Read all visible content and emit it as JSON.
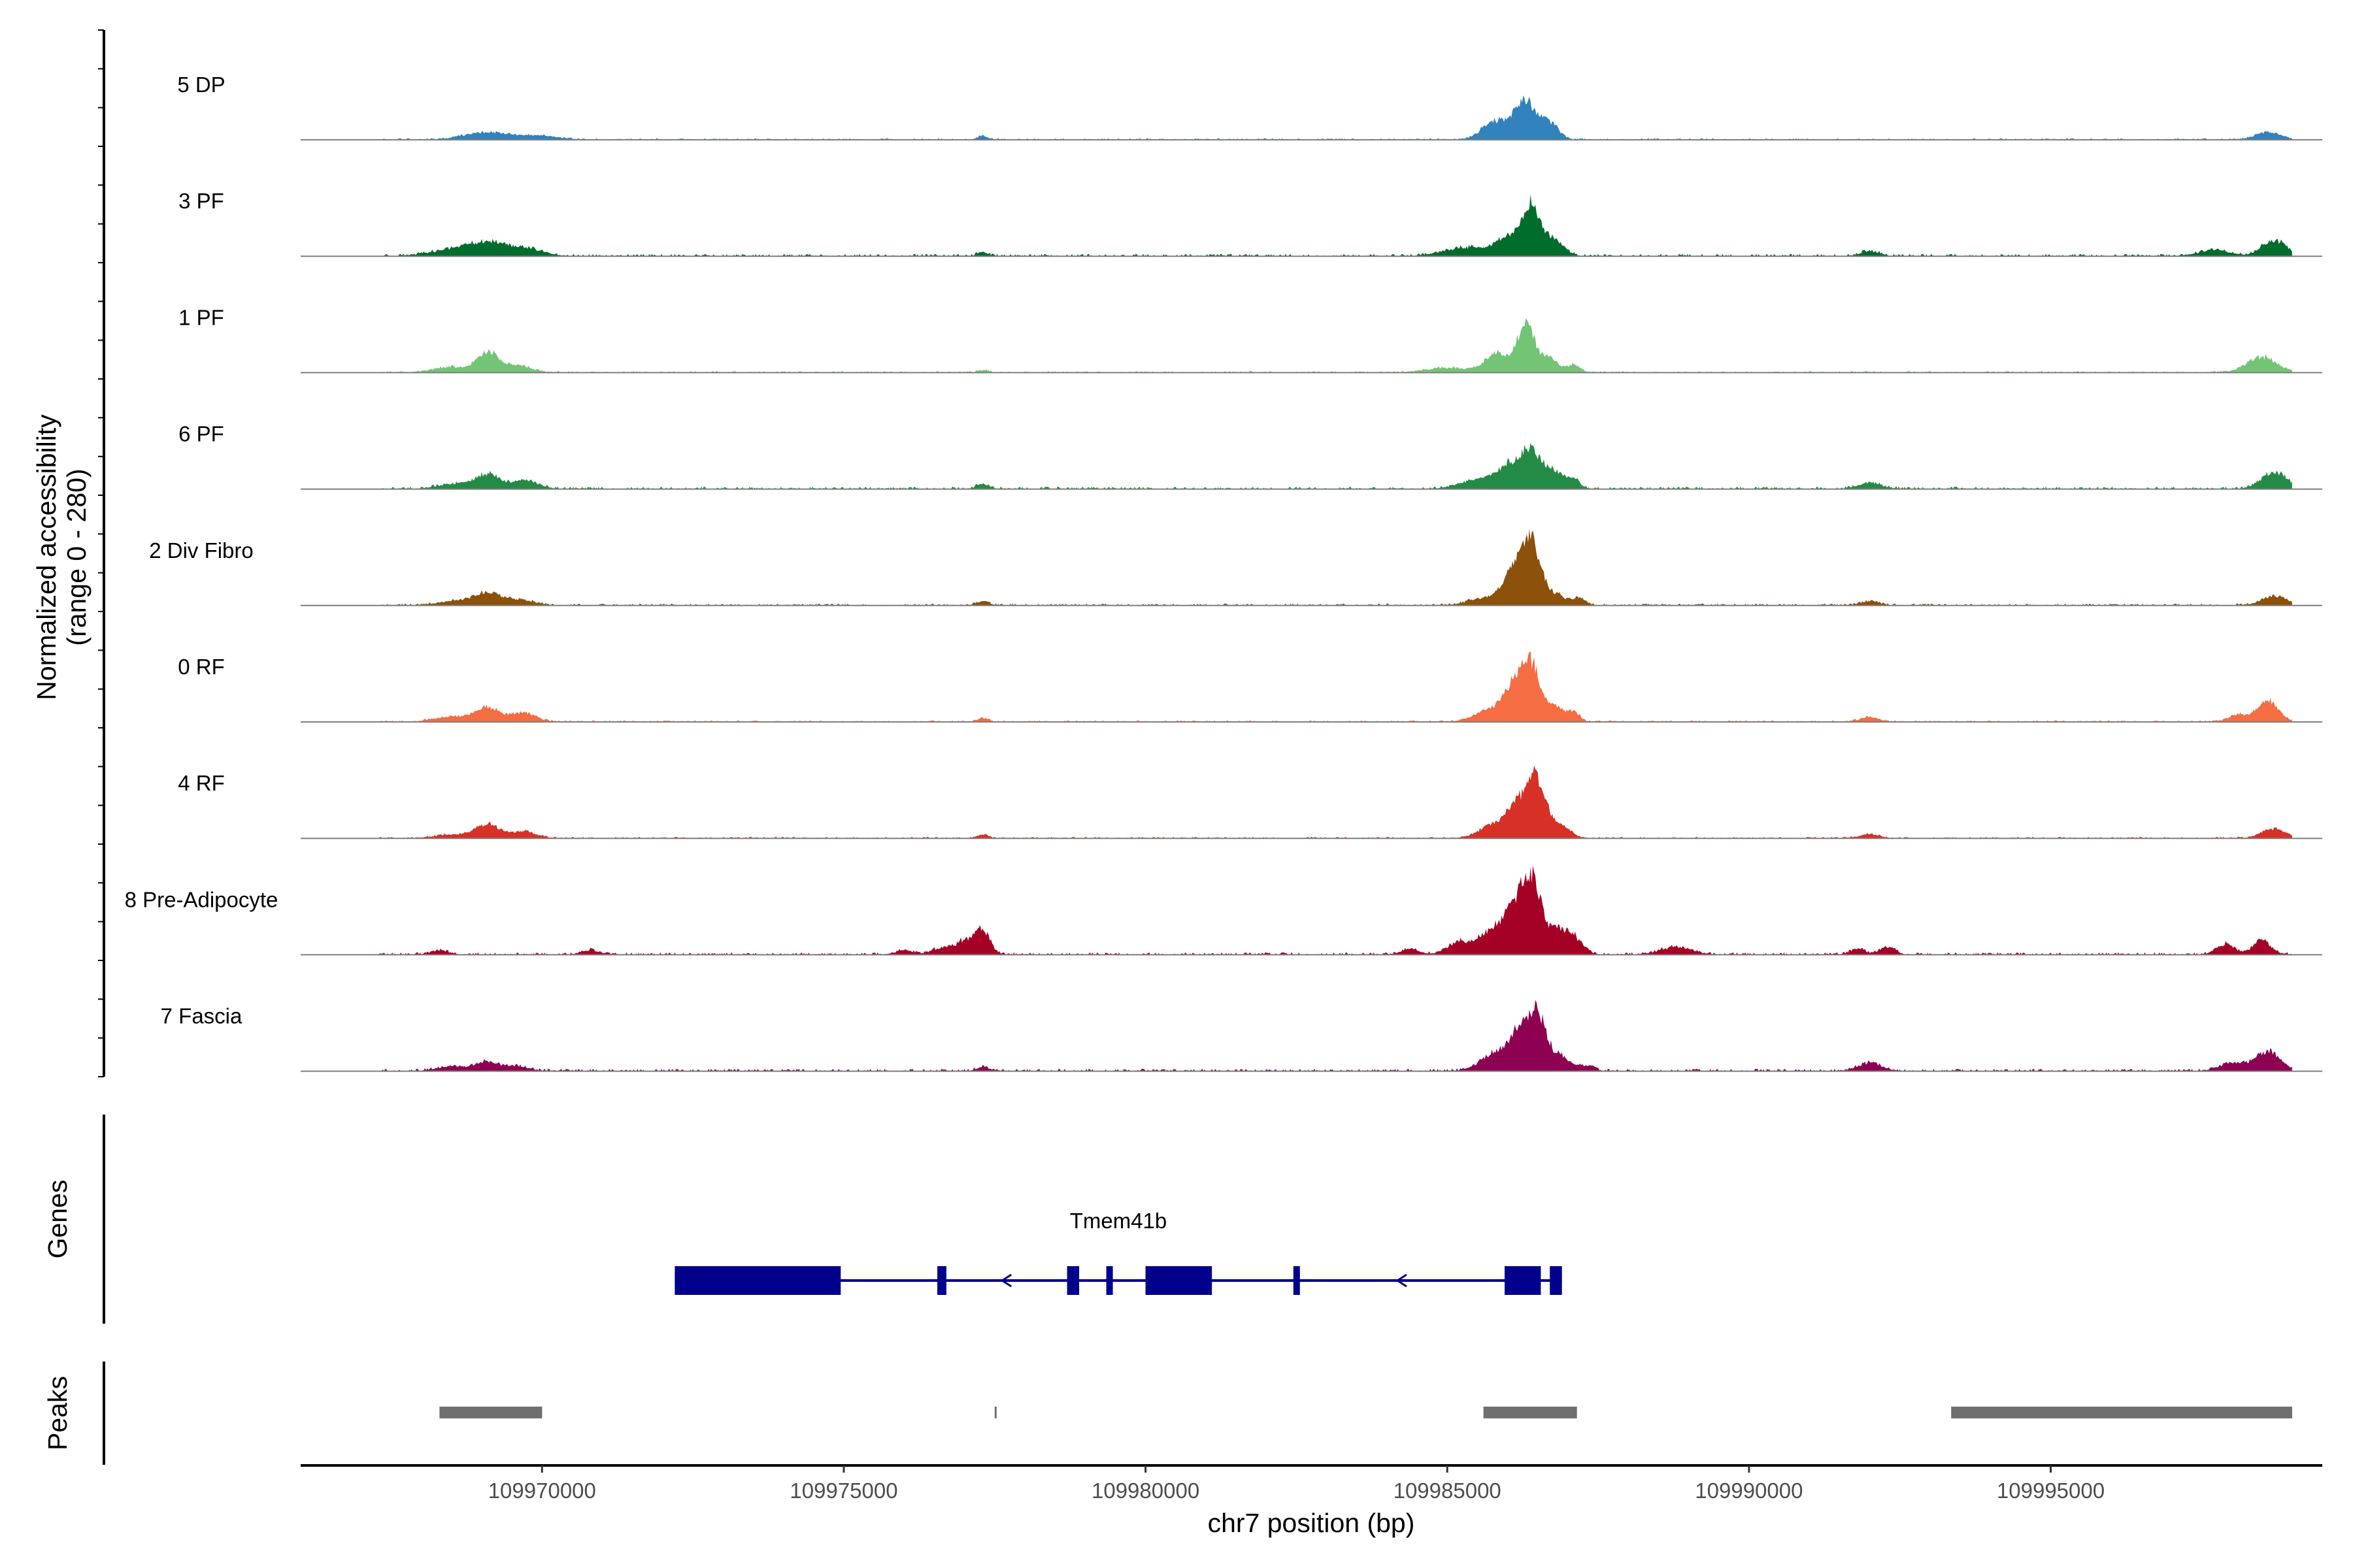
{
  "chart_data": {
    "type": "area",
    "title": "",
    "xlabel": "chr7 position (bp)",
    "ylabel_line1": "Normalized accessibility",
    "ylabel_line2": "(range 0 - 280)",
    "y_range": [
      0,
      280
    ],
    "xlim": [
      109966000,
      109999500
    ],
    "data_xrange": [
      109967300,
      109999000
    ],
    "x_ticks": [
      109970000,
      109975000,
      109980000,
      109985000,
      109990000,
      109995000
    ],
    "x_tick_labels": [
      "109970000",
      "109975000",
      "109980000",
      "109985000",
      "109990000",
      "109995000"
    ],
    "tracks": [
      {
        "name": "5 DP",
        "color": "#3182bd",
        "baseline": 4,
        "peaks": [
          [
            109969100,
            380,
            22
          ],
          [
            109970000,
            300,
            10
          ],
          [
            109977300,
            80,
            10
          ],
          [
            109985800,
            220,
            55
          ],
          [
            109986300,
            180,
            110
          ],
          [
            109986700,
            150,
            45
          ],
          [
            109998600,
            200,
            22
          ]
        ]
      },
      {
        "name": "3 PF",
        "color": "#006d2c",
        "baseline": 6,
        "peaks": [
          [
            109968400,
            350,
            12
          ],
          [
            109969100,
            380,
            38
          ],
          [
            109969800,
            250,
            16
          ],
          [
            109977300,
            80,
            12
          ],
          [
            109985300,
            350,
            25
          ],
          [
            109986000,
            200,
            50
          ],
          [
            109986400,
            160,
            150
          ],
          [
            109986800,
            150,
            40
          ],
          [
            109992000,
            150,
            14
          ],
          [
            109997700,
            250,
            18
          ],
          [
            109998700,
            200,
            45
          ]
        ]
      },
      {
        "name": "1 PF",
        "color": "#74c476",
        "baseline": 4,
        "peaks": [
          [
            109968500,
            300,
            16
          ],
          [
            109969100,
            170,
            58
          ],
          [
            109969600,
            220,
            20
          ],
          [
            109977300,
            100,
            6
          ],
          [
            109985000,
            350,
            14
          ],
          [
            109985800,
            180,
            55
          ],
          [
            109986300,
            150,
            140
          ],
          [
            109986700,
            150,
            40
          ],
          [
            109987100,
            100,
            22
          ],
          [
            109998500,
            250,
            45
          ]
        ]
      },
      {
        "name": "6 PF",
        "color": "#238b45",
        "baseline": 6,
        "peaks": [
          [
            109968600,
            300,
            16
          ],
          [
            109969100,
            180,
            40
          ],
          [
            109969700,
            220,
            26
          ],
          [
            109977300,
            100,
            14
          ],
          [
            109985500,
            300,
            25
          ],
          [
            109986000,
            200,
            60
          ],
          [
            109986400,
            180,
            110
          ],
          [
            109986800,
            150,
            45
          ],
          [
            109987100,
            100,
            25
          ],
          [
            109992000,
            200,
            16
          ],
          [
            109998700,
            200,
            50
          ]
        ]
      },
      {
        "name": "2 Div Fibro",
        "color": "#8c510a",
        "baseline": 5,
        "peaks": [
          [
            109968600,
            300,
            14
          ],
          [
            109969100,
            200,
            34
          ],
          [
            109969600,
            250,
            16
          ],
          [
            109977300,
            100,
            12
          ],
          [
            109985600,
            250,
            20
          ],
          [
            109986100,
            180,
            100
          ],
          [
            109986400,
            150,
            170
          ],
          [
            109986800,
            180,
            30
          ],
          [
            109987200,
            100,
            20
          ],
          [
            109992000,
            150,
            12
          ],
          [
            109998700,
            200,
            28
          ]
        ]
      },
      {
        "name": "0 RF",
        "color": "#f46d43",
        "baseline": 4,
        "peaks": [
          [
            109968500,
            300,
            14
          ],
          [
            109969100,
            200,
            40
          ],
          [
            109969700,
            200,
            26
          ],
          [
            109977300,
            100,
            10
          ],
          [
            109985700,
            250,
            34
          ],
          [
            109986100,
            170,
            100
          ],
          [
            109986400,
            150,
            160
          ],
          [
            109986800,
            150,
            40
          ],
          [
            109987100,
            100,
            26
          ],
          [
            109992000,
            150,
            14
          ],
          [
            109998100,
            150,
            20
          ],
          [
            109998600,
            180,
            60
          ]
        ]
      },
      {
        "name": "4 RF",
        "color": "#d73027",
        "baseline": 4,
        "peaks": [
          [
            109968500,
            300,
            10
          ],
          [
            109969100,
            200,
            40
          ],
          [
            109969700,
            200,
            20
          ],
          [
            109977300,
            100,
            10
          ],
          [
            109985800,
            250,
            40
          ],
          [
            109986200,
            180,
            90
          ],
          [
            109986500,
            150,
            160
          ],
          [
            109986900,
            150,
            35
          ],
          [
            109992000,
            150,
            12
          ],
          [
            109998700,
            200,
            28
          ]
        ]
      },
      {
        "name": "8 Pre-Adipocyte",
        "color": "#a50026",
        "baseline": 6,
        "peaks": [
          [
            109968300,
            150,
            12
          ],
          [
            109970800,
            150,
            12
          ],
          [
            109976000,
            150,
            12
          ],
          [
            109976600,
            150,
            18
          ],
          [
            109977000,
            150,
            40
          ],
          [
            109977300,
            120,
            70
          ],
          [
            109984400,
            150,
            16
          ],
          [
            109985200,
            200,
            35
          ],
          [
            109985700,
            200,
            60
          ],
          [
            109986100,
            180,
            130
          ],
          [
            109986400,
            150,
            200
          ],
          [
            109986800,
            180,
            70
          ],
          [
            109987100,
            150,
            40
          ],
          [
            109988800,
            250,
            22
          ],
          [
            109991800,
            120,
            16
          ],
          [
            109992300,
            120,
            24
          ],
          [
            109997900,
            150,
            30
          ],
          [
            109998500,
            150,
            40
          ]
        ]
      },
      {
        "name": "7 Fascia",
        "color": "#8e0152",
        "baseline": 6,
        "peaks": [
          [
            109968500,
            250,
            12
          ],
          [
            109969100,
            200,
            26
          ],
          [
            109969600,
            200,
            12
          ],
          [
            109977300,
            100,
            12
          ],
          [
            109985800,
            250,
            50
          ],
          [
            109986200,
            180,
            100
          ],
          [
            109986500,
            150,
            160
          ],
          [
            109986900,
            150,
            40
          ],
          [
            109987300,
            120,
            16
          ],
          [
            109992000,
            200,
            24
          ],
          [
            109998000,
            200,
            25
          ],
          [
            109998600,
            200,
            60
          ]
        ]
      }
    ],
    "genes_title": "Genes",
    "gene": {
      "name": "Tmem41b",
      "strand": "-",
      "color": "#00008b",
      "start": 109972200,
      "end": 109986900,
      "exons": [
        [
          109972200,
          109974950
        ],
        [
          109976550,
          109976700
        ],
        [
          109978700,
          109978900
        ],
        [
          109979350,
          109979450
        ],
        [
          109980000,
          109981100
        ],
        [
          109982450,
          109982550
        ],
        [
          109985950,
          109986550
        ],
        [
          109986700,
          109986900
        ]
      ]
    },
    "peaks_title": "Peaks",
    "peak_regions": [
      [
        109968300,
        109970000
      ],
      [
        109977500,
        109977530
      ],
      [
        109985600,
        109987150
      ],
      [
        109993350,
        109999000
      ]
    ]
  }
}
